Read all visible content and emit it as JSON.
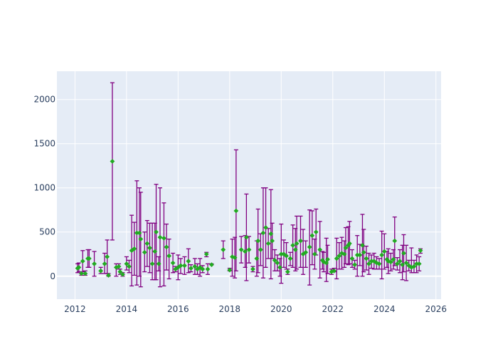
{
  "chart_data": {
    "type": "scatter",
    "title": "",
    "xlabel": "",
    "ylabel": "",
    "xlim": [
      2011.3,
      2026.2
    ],
    "ylim": [
      -260,
      2320
    ],
    "x_ticks": [
      2012,
      2014,
      2016,
      2018,
      2020,
      2022,
      2024,
      2026
    ],
    "y_ticks": [
      0,
      500,
      1000,
      1500,
      2000
    ],
    "grid": true,
    "colors": {
      "plot_bg": "#e5ecf6",
      "marker": "#22aa22",
      "error_bar": "#800080",
      "grid": "#ffffff",
      "text": "#2a3f5f"
    },
    "series": [
      {
        "points": [
          [
            2012.1,
            90,
            40,
            140
          ],
          [
            2012.15,
            100,
            50,
            150
          ],
          [
            2012.25,
            30,
            10,
            50
          ],
          [
            2012.3,
            170,
            50,
            290
          ],
          [
            2012.4,
            30,
            10,
            60
          ],
          [
            2012.5,
            200,
            100,
            300
          ],
          [
            2012.55,
            200,
            100,
            300
          ],
          [
            2012.75,
            140,
            0,
            280
          ],
          [
            2013.0,
            60,
            30,
            100
          ],
          [
            2013.15,
            140,
            30,
            260
          ],
          [
            2013.25,
            220,
            30,
            410
          ],
          [
            2013.3,
            10,
            0,
            30
          ],
          [
            2013.45,
            1300,
            410,
            2190
          ],
          [
            2013.6,
            100,
            0,
            140
          ],
          [
            2013.7,
            110,
            80,
            140
          ],
          [
            2013.75,
            50,
            20,
            80
          ],
          [
            2013.85,
            20,
            0,
            40
          ],
          [
            2014.0,
            140,
            70,
            220
          ],
          [
            2014.1,
            110,
            40,
            180
          ],
          [
            2014.2,
            290,
            -110,
            690
          ],
          [
            2014.3,
            310,
            10,
            610
          ],
          [
            2014.4,
            490,
            -100,
            1080
          ],
          [
            2014.5,
            490,
            0,
            1000
          ],
          [
            2014.55,
            420,
            -120,
            950
          ],
          [
            2014.7,
            270,
            50,
            500
          ],
          [
            2014.8,
            370,
            110,
            630
          ],
          [
            2014.9,
            320,
            40,
            600
          ],
          [
            2015.0,
            140,
            -40,
            600
          ],
          [
            2015.1,
            280,
            -40,
            600
          ],
          [
            2015.15,
            500,
            -40,
            1040
          ],
          [
            2015.25,
            140,
            60,
            220
          ],
          [
            2015.3,
            440,
            -120,
            1000
          ],
          [
            2015.45,
            430,
            -110,
            830
          ],
          [
            2015.55,
            330,
            70,
            590
          ],
          [
            2015.65,
            230,
            -30,
            420
          ],
          [
            2015.8,
            150,
            40,
            260
          ],
          [
            2015.9,
            80,
            50,
            110
          ],
          [
            2016.0,
            100,
            -40,
            240
          ],
          [
            2016.1,
            120,
            30,
            200
          ],
          [
            2016.25,
            120,
            20,
            220
          ],
          [
            2016.4,
            170,
            40,
            310
          ],
          [
            2016.5,
            90,
            50,
            130
          ],
          [
            2016.65,
            110,
            20,
            200
          ],
          [
            2016.75,
            80,
            20,
            140
          ],
          [
            2016.85,
            100,
            0,
            200
          ],
          [
            2016.95,
            80,
            40,
            120
          ],
          [
            2017.1,
            250,
            220,
            270
          ],
          [
            2017.15,
            80,
            20,
            140
          ],
          [
            2017.3,
            130,
            130,
            140
          ],
          [
            2017.75,
            300,
            200,
            400
          ],
          [
            2018.0,
            70,
            60,
            90
          ],
          [
            2018.1,
            220,
            0,
            420
          ],
          [
            2018.2,
            210,
            -20,
            440
          ],
          [
            2018.25,
            740,
            60,
            1430
          ],
          [
            2018.45,
            300,
            150,
            450
          ],
          [
            2018.6,
            280,
            100,
            460
          ],
          [
            2018.65,
            440,
            -50,
            930
          ],
          [
            2018.75,
            300,
            150,
            450
          ],
          [
            2018.9,
            80,
            50,
            110
          ],
          [
            2019.05,
            200,
            0,
            400
          ],
          [
            2019.1,
            400,
            40,
            760
          ],
          [
            2019.2,
            300,
            120,
            480
          ],
          [
            2019.3,
            490,
            -20,
            1000
          ],
          [
            2019.4,
            550,
            100,
            1000
          ],
          [
            2019.5,
            370,
            200,
            540
          ],
          [
            2019.6,
            480,
            -30,
            980
          ],
          [
            2019.65,
            400,
            200,
            600
          ],
          [
            2019.75,
            180,
            60,
            300
          ],
          [
            2019.85,
            150,
            60,
            240
          ],
          [
            2019.95,
            100,
            0,
            200
          ],
          [
            2020.0,
            250,
            -80,
            590
          ],
          [
            2020.1,
            250,
            100,
            410
          ],
          [
            2020.2,
            230,
            80,
            380
          ],
          [
            2020.25,
            50,
            20,
            80
          ],
          [
            2020.35,
            200,
            120,
            270
          ],
          [
            2020.45,
            350,
            100,
            580
          ],
          [
            2020.55,
            300,
            60,
            540
          ],
          [
            2020.6,
            370,
            80,
            680
          ],
          [
            2020.75,
            400,
            100,
            680
          ],
          [
            2020.85,
            250,
            20,
            530
          ],
          [
            2020.95,
            270,
            100,
            400
          ],
          [
            2021.1,
            330,
            -100,
            750
          ],
          [
            2021.2,
            460,
            130,
            740
          ],
          [
            2021.3,
            250,
            80,
            420
          ],
          [
            2021.35,
            500,
            240,
            760
          ],
          [
            2021.5,
            300,
            -20,
            620
          ],
          [
            2021.6,
            180,
            80,
            280
          ],
          [
            2021.65,
            160,
            50,
            270
          ],
          [
            2021.75,
            150,
            -60,
            430
          ],
          [
            2021.8,
            190,
            30,
            350
          ],
          [
            2021.95,
            50,
            20,
            80
          ],
          [
            2022.05,
            60,
            50,
            90
          ],
          [
            2022.15,
            200,
            -30,
            430
          ],
          [
            2022.25,
            230,
            80,
            380
          ],
          [
            2022.35,
            260,
            80,
            440
          ],
          [
            2022.45,
            250,
            100,
            400
          ],
          [
            2022.5,
            320,
            140,
            550
          ],
          [
            2022.6,
            350,
            130,
            560
          ],
          [
            2022.65,
            370,
            140,
            620
          ],
          [
            2022.75,
            200,
            100,
            300
          ],
          [
            2022.85,
            130,
            80,
            180
          ],
          [
            2022.95,
            240,
            0,
            460
          ],
          [
            2023.05,
            240,
            120,
            360
          ],
          [
            2023.15,
            350,
            0,
            700
          ],
          [
            2023.2,
            270,
            50,
            530
          ],
          [
            2023.3,
            200,
            70,
            340
          ],
          [
            2023.4,
            140,
            20,
            260
          ],
          [
            2023.5,
            170,
            90,
            240
          ],
          [
            2023.6,
            170,
            80,
            260
          ],
          [
            2023.7,
            150,
            80,
            220
          ],
          [
            2023.8,
            140,
            80,
            200
          ],
          [
            2023.9,
            240,
            -30,
            510
          ],
          [
            2024.0,
            280,
            80,
            480
          ],
          [
            2024.1,
            190,
            100,
            280
          ],
          [
            2024.15,
            170,
            30,
            310
          ],
          [
            2024.25,
            160,
            60,
            260
          ],
          [
            2024.35,
            190,
            80,
            300
          ],
          [
            2024.4,
            400,
            120,
            670
          ],
          [
            2024.5,
            140,
            70,
            210
          ],
          [
            2024.6,
            170,
            40,
            300
          ],
          [
            2024.7,
            130,
            -40,
            350
          ],
          [
            2024.75,
            260,
            50,
            470
          ],
          [
            2024.85,
            150,
            -50,
            350
          ],
          [
            2024.95,
            120,
            60,
            180
          ],
          [
            2025.05,
            100,
            40,
            320
          ],
          [
            2025.15,
            110,
            40,
            180
          ],
          [
            2025.25,
            140,
            40,
            240
          ],
          [
            2025.35,
            140,
            60,
            220
          ],
          [
            2025.4,
            290,
            260,
            310
          ]
        ]
      }
    ]
  }
}
